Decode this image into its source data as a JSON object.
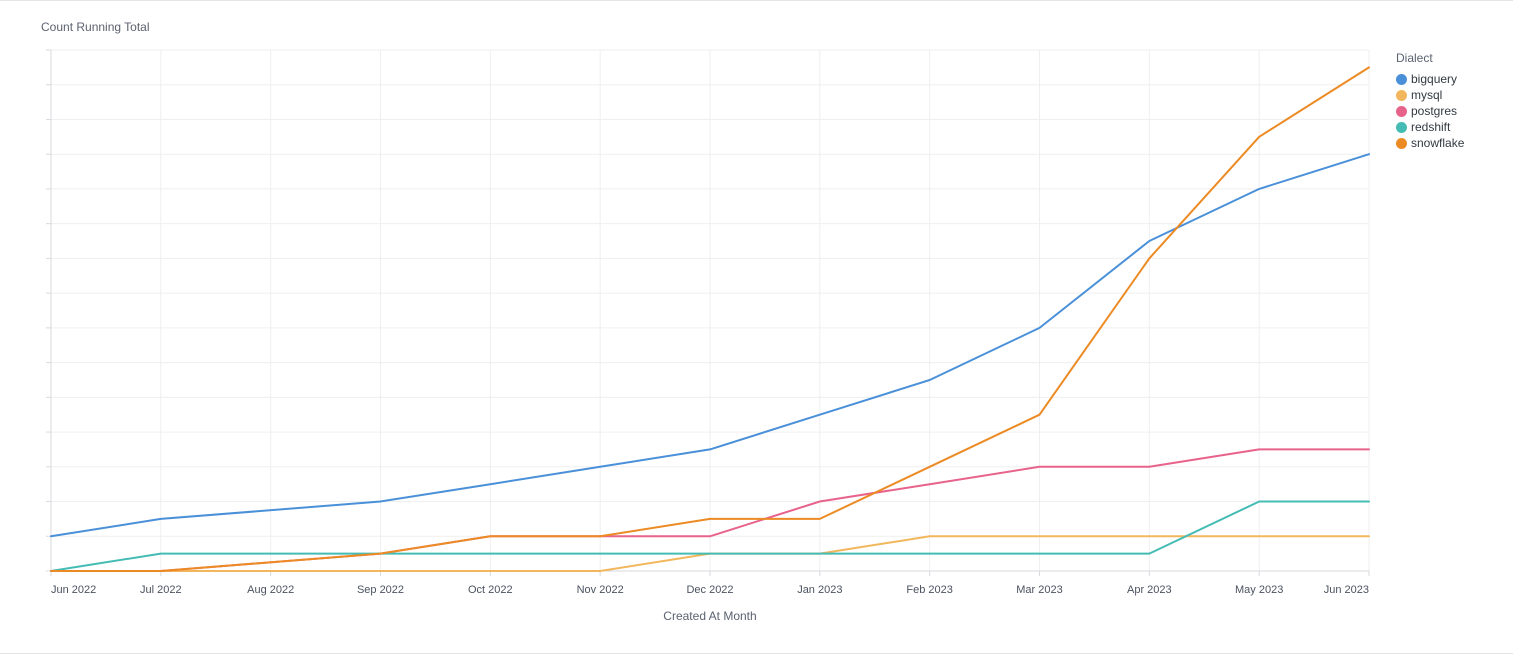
{
  "chart_data": {
    "type": "line",
    "ylabel": "Count Running Total",
    "xlabel": "Created At Month",
    "categories": [
      "Jun 2022",
      "Jul 2022",
      "Aug 2022",
      "Sep 2022",
      "Oct 2022",
      "Nov 2022",
      "Dec 2022",
      "Jan 2023",
      "Feb 2023",
      "Mar 2023",
      "Apr 2023",
      "May 2023",
      "Jun 2023"
    ],
    "ylim": [
      0,
      30
    ],
    "grid": true,
    "legend": {
      "title": "Dialect",
      "placement": "top-right"
    },
    "series": [
      {
        "name": "bigquery",
        "color": "#4a90d9",
        "values": [
          2,
          3,
          null,
          4,
          5,
          6,
          7,
          9,
          11,
          14,
          19,
          22,
          24
        ]
      },
      {
        "name": "mysql",
        "color": "#f2b75c",
        "values": [
          0,
          0,
          null,
          0,
          0,
          0,
          1,
          1,
          2,
          2,
          2,
          2,
          2
        ]
      },
      {
        "name": "postgres",
        "color": "#e8638c",
        "values": [
          0,
          0,
          null,
          1,
          2,
          2,
          2,
          4,
          5,
          6,
          6,
          7,
          7
        ]
      },
      {
        "name": "redshift",
        "color": "#44bcb4",
        "values": [
          0,
          1,
          null,
          1,
          1,
          1,
          1,
          1,
          1,
          1,
          1,
          4,
          4
        ]
      },
      {
        "name": "snowflake",
        "color": "#ec8a24",
        "values": [
          0,
          0,
          null,
          1,
          2,
          2,
          3,
          3,
          6,
          9,
          18,
          25,
          29
        ]
      }
    ]
  }
}
